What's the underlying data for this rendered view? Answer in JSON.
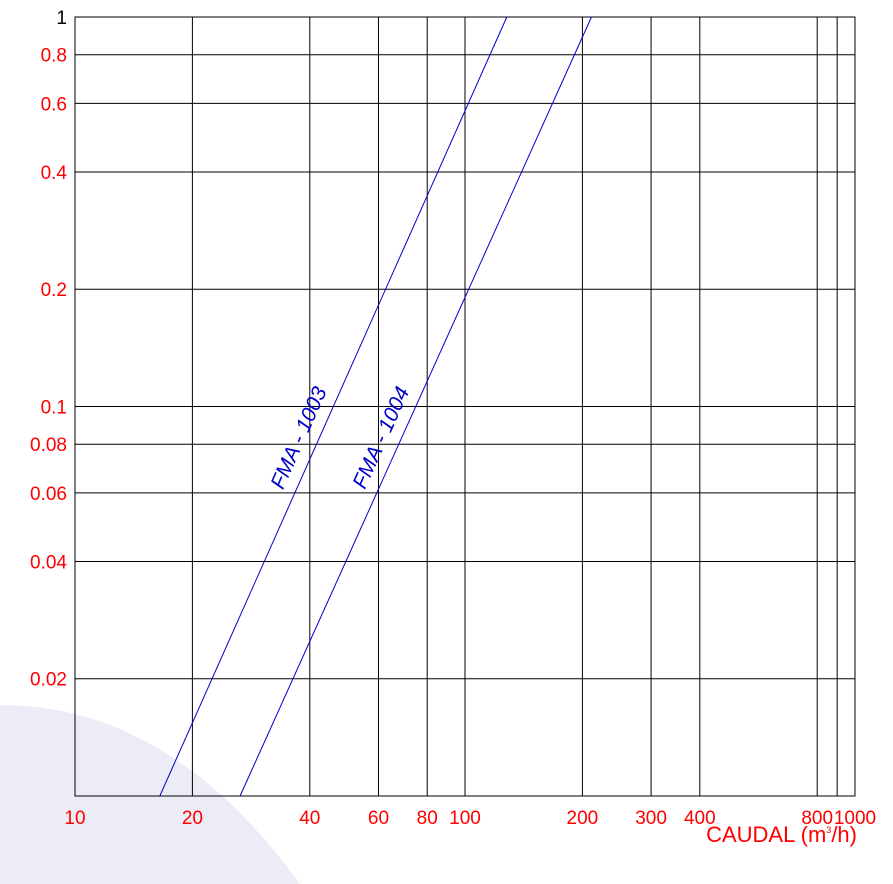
{
  "chart_data": {
    "type": "line",
    "x_scale": "log",
    "y_scale": "log",
    "xlim": [
      10,
      1000
    ],
    "ylim": [
      0.01,
      1
    ],
    "grid": true,
    "x_gridlines": [
      20,
      40,
      60,
      80,
      100,
      200,
      300,
      400,
      800,
      900
    ],
    "y_gridlines": [
      0.02,
      0.04,
      0.06,
      0.08,
      0.1,
      0.2,
      0.4,
      0.6,
      0.8
    ],
    "x_ticks": [
      {
        "value": 10,
        "label": "10"
      },
      {
        "value": 20,
        "label": "20"
      },
      {
        "value": 40,
        "label": "40"
      },
      {
        "value": 60,
        "label": "60"
      },
      {
        "value": 80,
        "label": "80"
      },
      {
        "value": 100,
        "label": "100"
      },
      {
        "value": 200,
        "label": "200"
      },
      {
        "value": 300,
        "label": "300"
      },
      {
        "value": 400,
        "label": "400"
      },
      {
        "value": 800,
        "label": "800"
      },
      {
        "value": 1000,
        "label": "1000"
      }
    ],
    "y_ticks": [
      {
        "value": 1,
        "label": "1"
      },
      {
        "value": 0.8,
        "label": "0.8"
      },
      {
        "value": 0.6,
        "label": "0.6"
      },
      {
        "value": 0.4,
        "label": "0.4"
      },
      {
        "value": 0.2,
        "label": "0.2"
      },
      {
        "value": 0.1,
        "label": "0.1"
      },
      {
        "value": 0.08,
        "label": "0.08"
      },
      {
        "value": 0.06,
        "label": "0.06"
      },
      {
        "value": 0.04,
        "label": "0.04"
      },
      {
        "value": 0.02,
        "label": "0.02"
      }
    ],
    "xlabel_main": "CAUDAL (m",
    "xlabel_sup": "3",
    "xlabel_tail": "/h)",
    "series": [
      {
        "name": "FMA - 1003",
        "x": [
          16.5,
          128
        ],
        "y": [
          0.01,
          1
        ]
      },
      {
        "name": "FMA - 1004",
        "x": [
          26.5,
          211
        ],
        "y": [
          0.01,
          1
        ]
      }
    ]
  },
  "colors": {
    "axis_labels": "#ff0000",
    "top_tick": "#000000",
    "grid": "#000000",
    "series": "#0000cc",
    "background_wash": "#ececf7"
  }
}
